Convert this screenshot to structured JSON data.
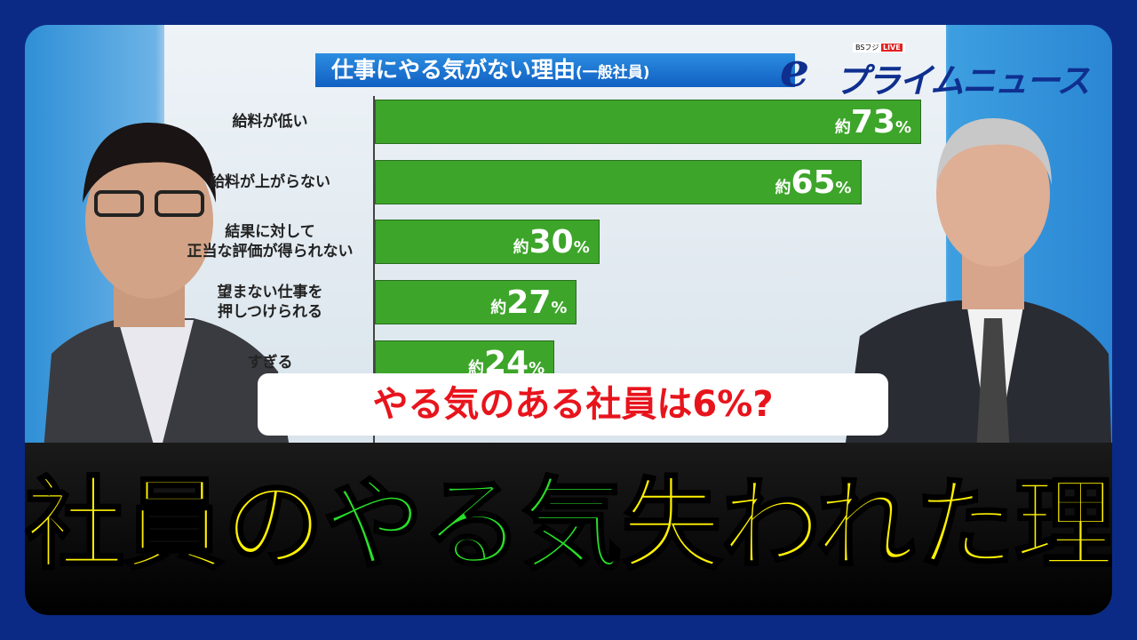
{
  "logo": {
    "brand": "BSフジ",
    "live": "LIVE",
    "name": "プライムニュース"
  },
  "chart_data": {
    "type": "bar",
    "orientation": "horizontal",
    "title": "仕事にやる気がない理由",
    "subtitle": "(一般社員)",
    "categories": [
      "給料が低い",
      "給料が上がらない",
      "結果に対して正当な評価が得られない",
      "望まない仕事を押しつけられる",
      "…すぎる"
    ],
    "category_lines": [
      [
        "給料が低い"
      ],
      [
        "給料が上がらない"
      ],
      [
        "結果に対して",
        "正当な評価が得られない"
      ],
      [
        "望まない仕事を",
        "押しつけられる"
      ],
      [
        "すぎる"
      ]
    ],
    "values": [
      73,
      65,
      30,
      27,
      24
    ],
    "value_prefix": "約",
    "value_suffix": "%",
    "bar_color": "#3da52a",
    "xlim": [
      0,
      100
    ]
  },
  "caption": {
    "subtitle": "やる気のある社員は6%?",
    "headline_parts": [
      {
        "text": "社員の",
        "color": "yellow"
      },
      {
        "text": "やる気",
        "color": "green"
      },
      {
        "text": "失われた理由",
        "color": "yellow"
      }
    ]
  }
}
